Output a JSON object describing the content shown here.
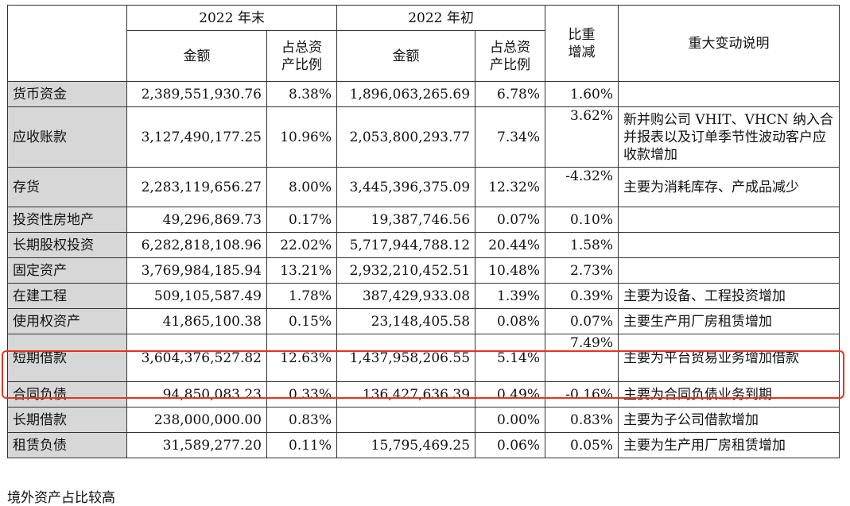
{
  "headers": {
    "end_2022": "2022 年末",
    "begin_2022": "2022 年初",
    "change": "比重增减",
    "explanation": "重大变动说明",
    "amount": "金额",
    "ratio": "占总资产比例"
  },
  "rows": [
    {
      "item": "货币资金",
      "end_amount": "2,389,551,930.76",
      "end_ratio": "8.38%",
      "begin_amount": "1,896,063,265.69",
      "begin_ratio": "6.78%",
      "change": "1.60%",
      "note": ""
    },
    {
      "item": "应收账款",
      "end_amount": "3,127,490,177.25",
      "end_ratio": "10.96%",
      "begin_amount": "2,053,800,293.77",
      "begin_ratio": "7.34%",
      "change": "3.62%",
      "note": "新并购公司 VHIT、VHCN 纳入合并报表以及订单季节性波动客户应收款增加"
    },
    {
      "item": "存货",
      "end_amount": "2,283,119,656.27",
      "end_ratio": "8.00%",
      "begin_amount": "3,445,396,375.09",
      "begin_ratio": "12.32%",
      "change": "-4.32%",
      "note": "主要为消耗库存、产成品减少"
    },
    {
      "item": "投资性房地产",
      "end_amount": "49,296,869.73",
      "end_ratio": "0.17%",
      "begin_amount": "19,387,746.56",
      "begin_ratio": "0.07%",
      "change": "0.10%",
      "note": ""
    },
    {
      "item": "长期股权投资",
      "end_amount": "6,282,818,108.96",
      "end_ratio": "22.02%",
      "begin_amount": "5,717,944,788.12",
      "begin_ratio": "20.44%",
      "change": "1.58%",
      "note": ""
    },
    {
      "item": "固定资产",
      "end_amount": "3,769,984,185.94",
      "end_ratio": "13.21%",
      "begin_amount": "2,932,210,452.51",
      "begin_ratio": "10.48%",
      "change": "2.73%",
      "note": ""
    },
    {
      "item": "在建工程",
      "end_amount": "509,105,587.49",
      "end_ratio": "1.78%",
      "begin_amount": "387,429,933.08",
      "begin_ratio": "1.39%",
      "change": "0.39%",
      "note": "主要为设备、工程投资增加"
    },
    {
      "item": "使用权资产",
      "end_amount": "41,865,100.38",
      "end_ratio": "0.15%",
      "begin_amount": "23,148,405.58",
      "begin_ratio": "0.08%",
      "change": "0.07%",
      "note": "主要生产用厂房租赁增加"
    },
    {
      "item": "短期借款",
      "end_amount": "3,604,376,527.82",
      "end_ratio": "12.63%",
      "begin_amount": "1,437,958,206.55",
      "begin_ratio": "5.14%",
      "change": "7.49%",
      "note": "主要为平台贸易业务增加借款"
    },
    {
      "item": "合同负债",
      "end_amount": "94,850,083.23",
      "end_ratio": "0.33%",
      "begin_amount": "136,427,636.39",
      "begin_ratio": "0.49%",
      "change": "-0.16%",
      "note": "主要为合同负债业务到期"
    },
    {
      "item": "长期借款",
      "end_amount": "238,000,000.00",
      "end_ratio": "0.83%",
      "begin_amount": "",
      "begin_ratio": "0.00%",
      "change": "0.83%",
      "note": "主要为子公司借款增加"
    },
    {
      "item": "租赁负债",
      "end_amount": "31,589,277.20",
      "end_ratio": "0.11%",
      "begin_amount": "15,795,469.25",
      "begin_ratio": "0.06%",
      "change": "0.05%",
      "note": "主要为生产用厂房租赁增加"
    }
  ],
  "footer": "境外资产占比较高"
}
